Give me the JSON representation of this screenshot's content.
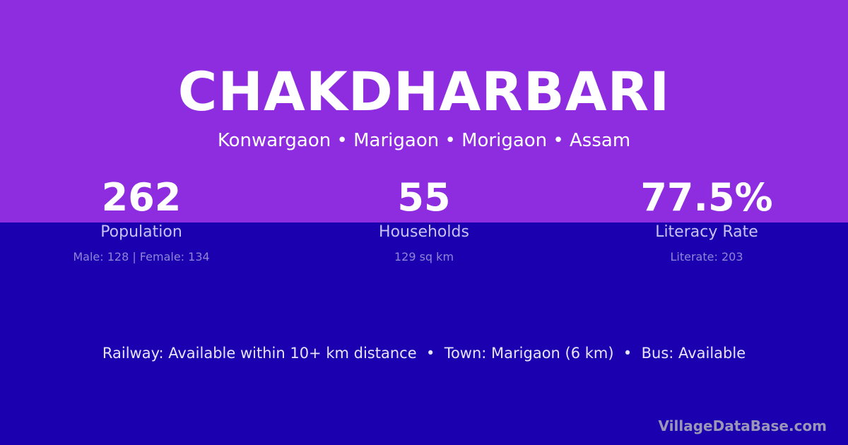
{
  "colors": {
    "top_background": "#8e2ce0",
    "bottom_background": "#1a00ae",
    "accent_text": "#c9c2f2"
  },
  "village": {
    "name": "CHAKDHARBARI",
    "location": "Konwargaon • Marigaon • Morigaon • Assam"
  },
  "stats": [
    {
      "value": "262",
      "label": "Population",
      "detail": "Male: 128 | Female: 134"
    },
    {
      "value": "55",
      "label": "Households",
      "detail": "129 sq km"
    },
    {
      "value": "77.5%",
      "label": "Literacy Rate",
      "detail": "Literate: 203"
    }
  ],
  "info_line": "Railway: Available within 10+ km distance  •  Town: Marigaon (6 km)  •  Bus: Available",
  "brand": "VillageDataBase.com"
}
